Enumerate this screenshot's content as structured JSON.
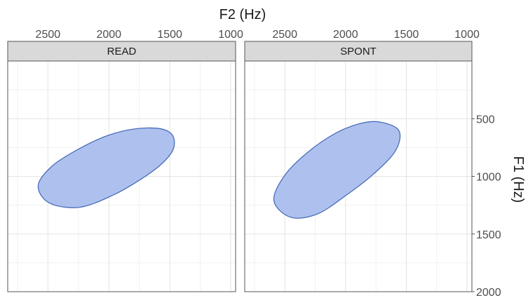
{
  "chart_data": {
    "type": "ellipse",
    "x_axis": {
      "label": "F2 (Hz)",
      "position": "top",
      "reversed": true,
      "range": [
        2830,
        960
      ],
      "major_ticks": [
        2500,
        2000,
        1500,
        1000
      ],
      "tick_labels": [
        "2500",
        "2000",
        "1500",
        "1000"
      ],
      "minor_ticks": [
        2750,
        2250,
        1750,
        1250
      ]
    },
    "y_axis": {
      "label": "F1 (Hz)",
      "position": "right",
      "reversed": true,
      "range": [
        0,
        2000
      ],
      "major_ticks": [
        500,
        1000,
        1500,
        2000
      ],
      "tick_labels": [
        "500",
        "1000",
        "1500",
        "2000"
      ],
      "minor_ticks": [
        250,
        750,
        1250,
        1750
      ]
    },
    "grid": true,
    "colors": {
      "fill": "#aec1ee",
      "outline": "#4a6db8"
    },
    "panels": [
      {
        "label": "READ",
        "ellipse": {
          "outline_f2_f1": [
            [
              1590,
              585
            ],
            [
              1480,
              640
            ],
            [
              1470,
              760
            ],
            [
              1560,
              885
            ],
            [
              1730,
              1020
            ],
            [
              1960,
              1160
            ],
            [
              2240,
              1268
            ],
            [
              2490,
              1230
            ],
            [
              2580,
              1080
            ],
            [
              2470,
              915
            ],
            [
              2260,
              770
            ],
            [
              2020,
              650
            ],
            [
              1800,
              590
            ],
            [
              1590,
              585
            ]
          ]
        }
      },
      {
        "label": "SPONT",
        "ellipse": {
          "outline_f2_f1": [
            [
              1710,
              530
            ],
            [
              1560,
              605
            ],
            [
              1590,
              780
            ],
            [
              1770,
              980
            ],
            [
              1990,
              1160
            ],
            [
              2230,
              1325
            ],
            [
              2450,
              1355
            ],
            [
              2590,
              1210
            ],
            [
              2500,
              990
            ],
            [
              2310,
              790
            ],
            [
              2080,
              625
            ],
            [
              1870,
              540
            ],
            [
              1710,
              530
            ]
          ]
        }
      }
    ]
  }
}
